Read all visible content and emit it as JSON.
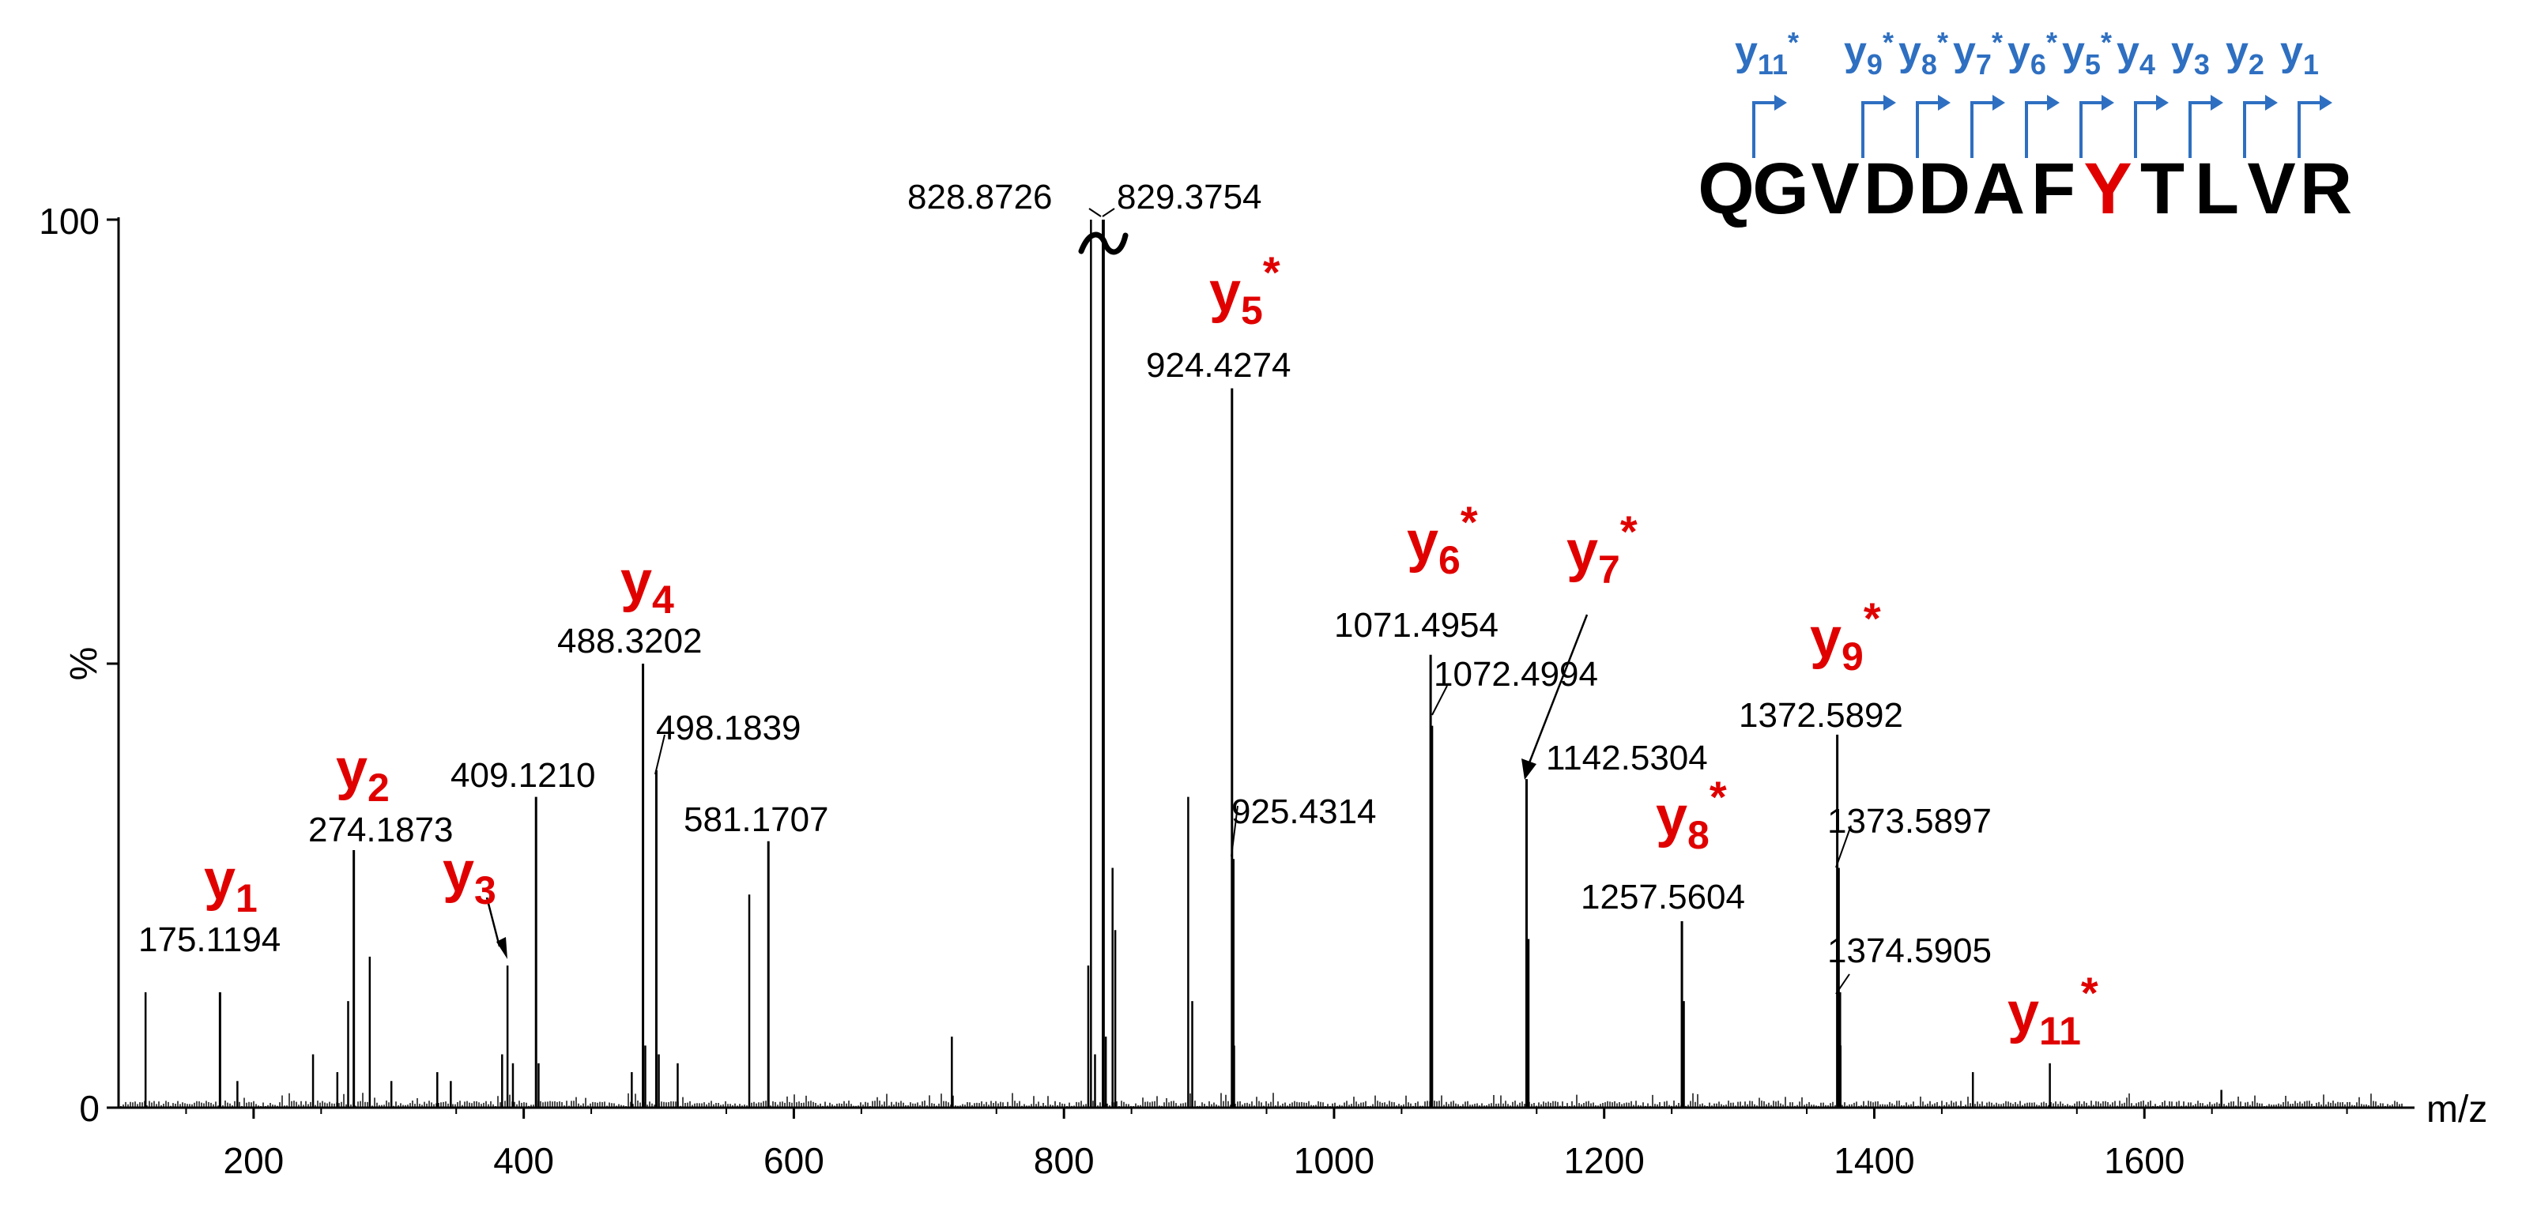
{
  "chart_data": {
    "type": "bar",
    "title": "",
    "xlabel": "m/z",
    "ylabel": "%",
    "xlim": [
      100,
      1800
    ],
    "ylim": [
      0,
      100
    ],
    "x_ticks": [
      "200",
      "400",
      "600",
      "800",
      "1000",
      "1200",
      "1400",
      "1600"
    ],
    "y_ticks": [
      "0",
      "100"
    ],
    "labeled_peaks": [
      {
        "mz": 175.1194,
        "intensity": 13,
        "label": "175.1194"
      },
      {
        "mz": 274.1873,
        "intensity": 29,
        "label": "274.1873"
      },
      {
        "mz": 409.121,
        "intensity": 35,
        "label": "409.1210"
      },
      {
        "mz": 488.3202,
        "intensity": 50,
        "label": "488.3202"
      },
      {
        "mz": 498.1839,
        "intensity": 38,
        "label": "498.1839"
      },
      {
        "mz": 581.1707,
        "intensity": 30,
        "label": "581.1707"
      },
      {
        "mz": 828.8726,
        "intensity": 100,
        "label": "828.8726"
      },
      {
        "mz": 829.3754,
        "intensity": 100,
        "label": "829.3754"
      },
      {
        "mz": 924.4274,
        "intensity": 81,
        "label": "924.4274"
      },
      {
        "mz": 925.4314,
        "intensity": 28,
        "label": "925.4314"
      },
      {
        "mz": 1071.4954,
        "intensity": 51,
        "label": "1071.4954"
      },
      {
        "mz": 1072.4994,
        "intensity": 43,
        "label": "1072.4994"
      },
      {
        "mz": 1142.5304,
        "intensity": 37,
        "label": "1142.5304"
      },
      {
        "mz": 1257.5604,
        "intensity": 21,
        "label": "1257.5604"
      },
      {
        "mz": 1372.5892,
        "intensity": 42,
        "label": "1372.5892"
      },
      {
        "mz": 1373.5897,
        "intensity": 27,
        "label": "1373.5897"
      },
      {
        "mz": 1374.5905,
        "intensity": 13,
        "label": "1374.5905"
      }
    ],
    "unlabeled_peaks": [
      {
        "mz": 120,
        "intensity": 13
      },
      {
        "mz": 188,
        "intensity": 3
      },
      {
        "mz": 244,
        "intensity": 6
      },
      {
        "mz": 262,
        "intensity": 4
      },
      {
        "mz": 270,
        "intensity": 12
      },
      {
        "mz": 286,
        "intensity": 17
      },
      {
        "mz": 302,
        "intensity": 3
      },
      {
        "mz": 336,
        "intensity": 4
      },
      {
        "mz": 346,
        "intensity": 3
      },
      {
        "mz": 384,
        "intensity": 6
      },
      {
        "mz": 388,
        "intensity": 16
      },
      {
        "mz": 392,
        "intensity": 5
      },
      {
        "mz": 411,
        "intensity": 5
      },
      {
        "mz": 480,
        "intensity": 4
      },
      {
        "mz": 490,
        "intensity": 7
      },
      {
        "mz": 500,
        "intensity": 6
      },
      {
        "mz": 514,
        "intensity": 5
      },
      {
        "mz": 567,
        "intensity": 24
      },
      {
        "mz": 717,
        "intensity": 8
      },
      {
        "mz": 818,
        "intensity": 16
      },
      {
        "mz": 820,
        "intensity": 100
      },
      {
        "mz": 823,
        "intensity": 6
      },
      {
        "mz": 831,
        "intensity": 8
      },
      {
        "mz": 836,
        "intensity": 27
      },
      {
        "mz": 838,
        "intensity": 20
      },
      {
        "mz": 892,
        "intensity": 35
      },
      {
        "mz": 895,
        "intensity": 12
      },
      {
        "mz": 926,
        "intensity": 7
      },
      {
        "mz": 1072,
        "intensity": 11
      },
      {
        "mz": 1144,
        "intensity": 19
      },
      {
        "mz": 1259,
        "intensity": 12
      },
      {
        "mz": 1375,
        "intensity": 7
      },
      {
        "mz": 1473,
        "intensity": 4
      },
      {
        "mz": 1530,
        "intensity": 5
      },
      {
        "mz": 1657,
        "intensity": 2
      }
    ],
    "ion_annotations": [
      {
        "base": "y",
        "sub": "1",
        "star": ""
      },
      {
        "base": "y",
        "sub": "2",
        "star": ""
      },
      {
        "base": "y",
        "sub": "3",
        "star": ""
      },
      {
        "base": "y",
        "sub": "4",
        "star": ""
      },
      {
        "base": "y",
        "sub": "5",
        "star": "*"
      },
      {
        "base": "y",
        "sub": "6",
        "star": "*"
      },
      {
        "base": "y",
        "sub": "7",
        "star": "*"
      },
      {
        "base": "y",
        "sub": "8",
        "star": "*"
      },
      {
        "base": "y",
        "sub": "9",
        "star": "*"
      },
      {
        "base": "y",
        "sub": "11",
        "star": "*"
      }
    ],
    "sequence": {
      "residues": [
        "Q",
        "G",
        "V",
        "D",
        "D",
        "A",
        "F",
        "Y",
        "T",
        "L",
        "V",
        "R"
      ],
      "modified_residue": "Y",
      "colors": {
        "normal": "#000000",
        "modified": "#e00000",
        "fragment": "#2e6fc1"
      },
      "fragment_ions": [
        {
          "base": "y",
          "sub": "11",
          "star": "*"
        },
        {
          "base": "y",
          "sub": "9",
          "star": "*"
        },
        {
          "base": "y",
          "sub": "8",
          "star": "*"
        },
        {
          "base": "y",
          "sub": "7",
          "star": "*"
        },
        {
          "base": "y",
          "sub": "6",
          "star": "*"
        },
        {
          "base": "y",
          "sub": "5",
          "star": "*"
        },
        {
          "base": "y",
          "sub": "4",
          "star": ""
        },
        {
          "base": "y",
          "sub": "3",
          "star": ""
        },
        {
          "base": "y",
          "sub": "2",
          "star": ""
        },
        {
          "base": "y",
          "sub": "1",
          "star": ""
        }
      ]
    }
  }
}
